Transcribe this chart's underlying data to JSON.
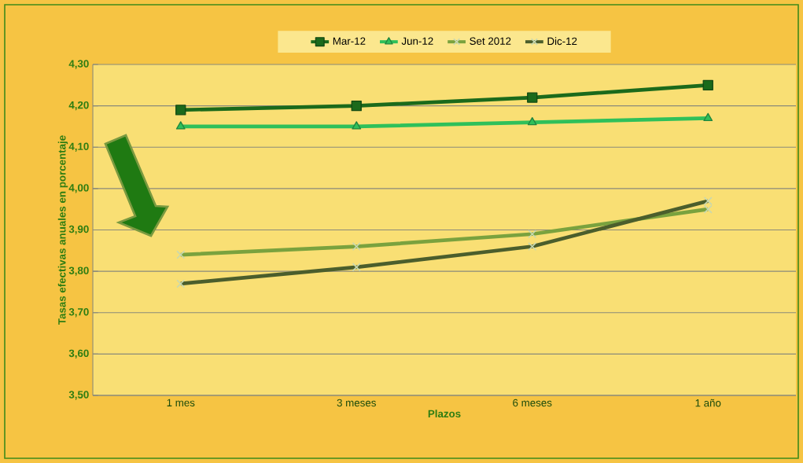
{
  "chart_data": {
    "type": "line",
    "xlabel": "Plazos",
    "ylabel": "Tasas efectivas anuales en porcentaje",
    "categories": [
      "1 mes",
      "3 meses",
      "6 meses",
      "1 año"
    ],
    "series": [
      {
        "name": "Mar-12",
        "color": "#1b6a1b",
        "marker": "square",
        "values": [
          4.19,
          4.2,
          4.22,
          4.25
        ]
      },
      {
        "name": "Jun-12",
        "color": "#2fc05a",
        "marker": "triangle",
        "values": [
          4.15,
          4.15,
          4.16,
          4.17
        ]
      },
      {
        "name": "Set 2012",
        "color": "#7aa23e",
        "marker": "cross",
        "values": [
          3.84,
          3.86,
          3.89,
          3.95
        ]
      },
      {
        "name": "Dic-12",
        "color": "#4b5e2c",
        "marker": "cross",
        "values": [
          3.77,
          3.81,
          3.86,
          3.97
        ]
      }
    ],
    "ylim": [
      3.5,
      4.3
    ],
    "yticks": [
      {
        "value": 3.5,
        "label": "3,50"
      },
      {
        "value": 3.6,
        "label": "3,60"
      },
      {
        "value": 3.7,
        "label": "3,70"
      },
      {
        "value": 3.8,
        "label": "3,80"
      },
      {
        "value": 3.9,
        "label": "3,90"
      },
      {
        "value": 4.0,
        "label": "4,00"
      },
      {
        "value": 4.1,
        "label": "4,10"
      },
      {
        "value": 4.2,
        "label": "4,20"
      },
      {
        "value": 4.3,
        "label": "4,30"
      }
    ],
    "grid": "y",
    "legend": "top",
    "line_style": "solid"
  }
}
